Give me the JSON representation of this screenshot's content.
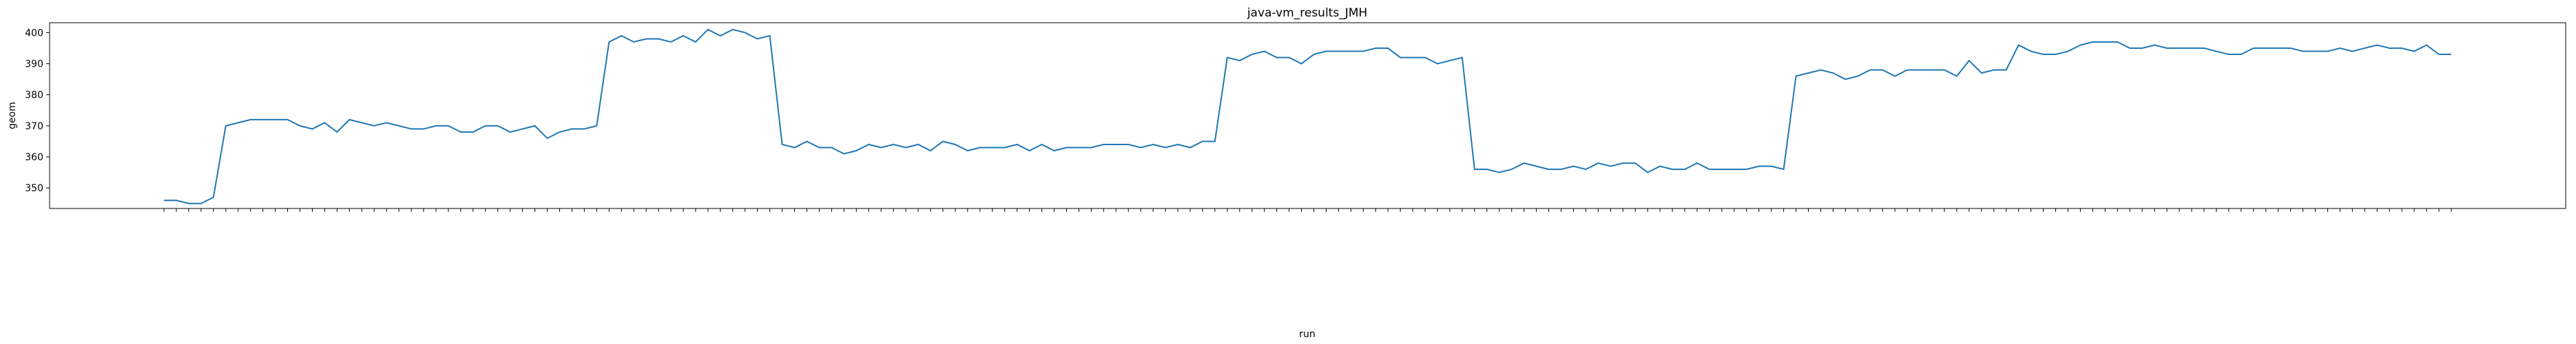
{
  "chart_data": {
    "type": "line",
    "title": "java-vm_results_JMH",
    "x_label": "run",
    "y_label": "geom",
    "categories": [
      null,
      null,
      null,
      null,
      null,
      null,
      null,
      null,
      null,
      null,
      null,
      null,
      null,
      null,
      null,
      null,
      null,
      null,
      null,
      null,
      null,
      null,
      null,
      null,
      null,
      null,
      null,
      null,
      null,
      null,
      null,
      null,
      null,
      null,
      null,
      null,
      null,
      null,
      null,
      null,
      null,
      null,
      null,
      null,
      null,
      null,
      null,
      null,
      null,
      null,
      null,
      null,
      null,
      null,
      null,
      null,
      null,
      null,
      null,
      null,
      null,
      null,
      null,
      null,
      null,
      null,
      null,
      null,
      null,
      null,
      null,
      null,
      null,
      null,
      null,
      null,
      null,
      null,
      null,
      null,
      null,
      null,
      null,
      null,
      null,
      null,
      null,
      null,
      null,
      null,
      null,
      null,
      null,
      null,
      null,
      null,
      null,
      null,
      null,
      null,
      null,
      null,
      null,
      null,
      null,
      null,
      null,
      null,
      null,
      null,
      null,
      null,
      null,
      null,
      null,
      null,
      null,
      null,
      null,
      null,
      null,
      null,
      null,
      null,
      null,
      null,
      null,
      null,
      null,
      null,
      null,
      null,
      null,
      null,
      null,
      null,
      null,
      null,
      null,
      null,
      null,
      null,
      null,
      null,
      null,
      null,
      null,
      null,
      null,
      null,
      null,
      null,
      null,
      null,
      null,
      null,
      null,
      null,
      null,
      null,
      null,
      null,
      null,
      null,
      null,
      null,
      null,
      null,
      null,
      null,
      null,
      null,
      null,
      null,
      null,
      null,
      null,
      null,
      null,
      null,
      null,
      null,
      null,
      null,
      null,
      null
    ],
    "series": [
      {
        "name": "geom",
        "color": "#1f77b4",
        "values": [
          346,
          346,
          345,
          345,
          347,
          370,
          371,
          372,
          372,
          372,
          372,
          370,
          369,
          371,
          368,
          372,
          371,
          370,
          371,
          370,
          369,
          369,
          370,
          370,
          368,
          368,
          370,
          370,
          368,
          369,
          370,
          366,
          368,
          369,
          369,
          370,
          397,
          399,
          397,
          398,
          398,
          397,
          399,
          397,
          401,
          399,
          401,
          400,
          398,
          399,
          364,
          363,
          365,
          363,
          363,
          361,
          362,
          364,
          363,
          364,
          363,
          364,
          362,
          365,
          364,
          362,
          363,
          363,
          363,
          364,
          362,
          364,
          362,
          363,
          363,
          363,
          364,
          364,
          364,
          363,
          364,
          363,
          364,
          363,
          365,
          365,
          392,
          391,
          393,
          394,
          392,
          392,
          390,
          393,
          394,
          394,
          394,
          394,
          395,
          395,
          392,
          392,
          392,
          390,
          391,
          392,
          356,
          356,
          355,
          356,
          358,
          357,
          356,
          356,
          357,
          356,
          358,
          357,
          358,
          358,
          355,
          357,
          356,
          356,
          358,
          356,
          356,
          356,
          356,
          357,
          357,
          356,
          386,
          387,
          388,
          387,
          385,
          386,
          388,
          388,
          386,
          388,
          388,
          388,
          388,
          386,
          391,
          387,
          388,
          388,
          396,
          394,
          393,
          393,
          394,
          396,
          397,
          397,
          397,
          395,
          395,
          396,
          395,
          395,
          395,
          395,
          394,
          393,
          393,
          395,
          395,
          395,
          395,
          394,
          394,
          394,
          395,
          394,
          395,
          396,
          395,
          395,
          394,
          396,
          393,
          393
        ]
      }
    ],
    "ylim": [
      343.4,
      403.2
    ],
    "yticks": [
      350,
      360,
      370,
      380,
      390,
      400
    ]
  }
}
